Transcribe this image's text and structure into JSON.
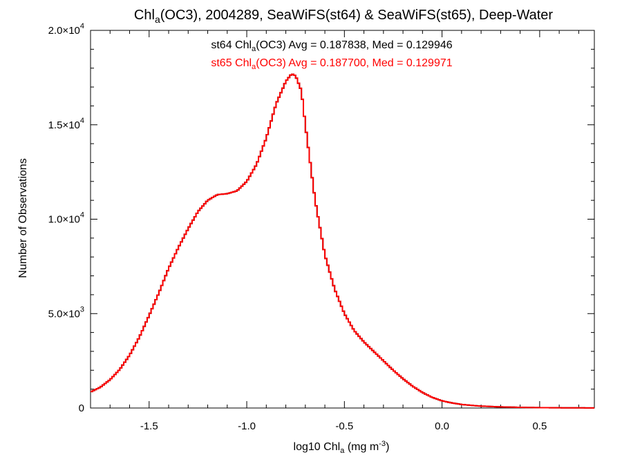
{
  "chart_data": {
    "type": "line",
    "title": {
      "pre": "Chl",
      "sub": "a",
      "post": "(OC3), 2004289, SeaWiFS(st64) & SeaWiFS(st65), Deep-Water"
    },
    "xlabel": {
      "pre": "log10 Chl",
      "sub": "a",
      "mid": " (mg m",
      "sup": "-3",
      "post": ")"
    },
    "ylabel": "Number of Observations",
    "xlim": [
      -1.8,
      0.78
    ],
    "ylim": [
      0,
      20000
    ],
    "x_ticks": [
      {
        "value": -1.5,
        "label": "-1.5"
      },
      {
        "value": -1.0,
        "label": "-1.0"
      },
      {
        "value": -0.5,
        "label": "-0.5"
      },
      {
        "value": 0.0,
        "label": "0.0"
      },
      {
        "value": 0.5,
        "label": "0.5"
      }
    ],
    "y_ticks": [
      {
        "value": 0,
        "mant": "0",
        "exp": ""
      },
      {
        "value": 5000,
        "mant": "5.0×10",
        "exp": "3"
      },
      {
        "value": 10000,
        "mant": "1.0×10",
        "exp": "4"
      },
      {
        "value": 15000,
        "mant": "1.5×10",
        "exp": "4"
      },
      {
        "value": 20000,
        "mant": "2.0×10",
        "exp": "4"
      }
    ],
    "annotations": [
      {
        "pre": "st64 Chl",
        "sub": "a",
        "post": "(OC3) Avg = 0.187838, Med = 0.129946",
        "color": "#000000"
      },
      {
        "pre": "st65 Chl",
        "sub": "a",
        "post": "(OC3) Avg = 0.187700, Med = 0.129971",
        "color": "#ff0000"
      }
    ],
    "series": [
      {
        "color": "#000000",
        "style": "step",
        "x": [
          -1.8,
          -1.75,
          -1.7,
          -1.65,
          -1.6,
          -1.55,
          -1.5,
          -1.45,
          -1.4,
          -1.35,
          -1.3,
          -1.25,
          -1.2,
          -1.15,
          -1.1,
          -1.05,
          -1.0,
          -0.95,
          -0.9,
          -0.85,
          -0.8,
          -0.77,
          -0.75,
          -0.72,
          -0.7,
          -0.65,
          -0.6,
          -0.55,
          -0.5,
          -0.45,
          -0.4,
          -0.35,
          -0.3,
          -0.25,
          -0.2,
          -0.15,
          -0.1,
          -0.05,
          0.0,
          0.05,
          0.1,
          0.15,
          0.2,
          0.3,
          0.4,
          0.5,
          0.6,
          0.7,
          0.78
        ],
        "y": [
          850,
          1100,
          1500,
          2050,
          2800,
          3750,
          4900,
          6100,
          7400,
          8500,
          9500,
          10400,
          11000,
          11300,
          11350,
          11500,
          12000,
          12900,
          14300,
          16100,
          17300,
          17700,
          17600,
          16800,
          15000,
          11000,
          8100,
          6300,
          5000,
          4100,
          3500,
          3000,
          2500,
          2000,
          1550,
          1150,
          820,
          560,
          380,
          270,
          190,
          140,
          100,
          60,
          35,
          20,
          12,
          8,
          5
        ]
      },
      {
        "color": "#ff0000",
        "style": "step",
        "x": [
          -1.8,
          -1.75,
          -1.7,
          -1.65,
          -1.6,
          -1.55,
          -1.5,
          -1.45,
          -1.4,
          -1.35,
          -1.3,
          -1.25,
          -1.2,
          -1.15,
          -1.1,
          -1.05,
          -1.0,
          -0.95,
          -0.9,
          -0.85,
          -0.8,
          -0.77,
          -0.75,
          -0.72,
          -0.7,
          -0.65,
          -0.6,
          -0.55,
          -0.5,
          -0.45,
          -0.4,
          -0.35,
          -0.3,
          -0.25,
          -0.2,
          -0.15,
          -0.1,
          -0.05,
          0.0,
          0.05,
          0.1,
          0.15,
          0.2,
          0.3,
          0.4,
          0.5,
          0.6,
          0.7,
          0.78
        ],
        "y": [
          850,
          1100,
          1500,
          2050,
          2800,
          3750,
          4900,
          6100,
          7400,
          8500,
          9500,
          10400,
          11000,
          11300,
          11350,
          11500,
          12000,
          12900,
          14300,
          16100,
          17300,
          17700,
          17600,
          16800,
          15000,
          11000,
          8100,
          6300,
          5000,
          4100,
          3500,
          3000,
          2500,
          2000,
          1550,
          1150,
          820,
          560,
          380,
          270,
          190,
          140,
          100,
          60,
          35,
          20,
          12,
          8,
          5
        ]
      }
    ],
    "grid": false
  }
}
